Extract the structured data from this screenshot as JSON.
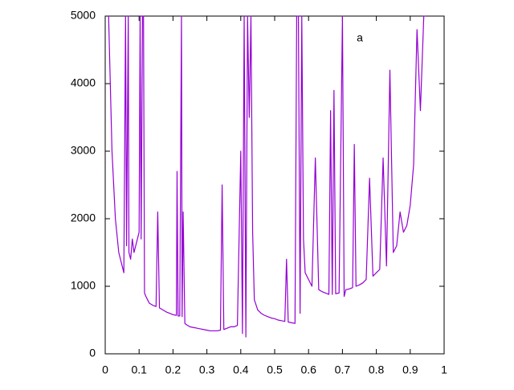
{
  "chart_data": {
    "type": "line",
    "x": [
      0.01,
      0.015,
      0.02,
      0.03,
      0.04,
      0.05,
      0.055,
      0.06,
      0.063,
      0.068,
      0.07,
      0.075,
      0.08,
      0.085,
      0.09,
      0.095,
      0.1,
      0.103,
      0.106,
      0.11,
      0.113,
      0.116,
      0.12,
      0.125,
      0.13,
      0.14,
      0.15,
      0.155,
      0.16,
      0.17,
      0.18,
      0.19,
      0.2,
      0.21,
      0.212,
      0.215,
      0.22,
      0.225,
      0.227,
      0.23,
      0.235,
      0.24,
      0.25,
      0.26,
      0.27,
      0.28,
      0.29,
      0.3,
      0.31,
      0.32,
      0.33,
      0.34,
      0.345,
      0.35,
      0.36,
      0.37,
      0.38,
      0.39,
      0.4,
      0.405,
      0.41,
      0.415,
      0.42,
      0.425,
      0.43,
      0.435,
      0.44,
      0.45,
      0.46,
      0.47,
      0.48,
      0.49,
      0.5,
      0.51,
      0.52,
      0.53,
      0.535,
      0.54,
      0.55,
      0.56,
      0.565,
      0.57,
      0.575,
      0.58,
      0.585,
      0.59,
      0.6,
      0.61,
      0.62,
      0.63,
      0.64,
      0.65,
      0.66,
      0.665,
      0.67,
      0.675,
      0.68,
      0.69,
      0.7,
      0.705,
      0.71,
      0.72,
      0.73,
      0.735,
      0.74,
      0.75,
      0.76,
      0.77,
      0.78,
      0.79,
      0.8,
      0.81,
      0.82,
      0.83,
      0.84,
      0.85,
      0.86,
      0.87,
      0.88,
      0.89,
      0.9,
      0.91,
      0.92,
      0.93,
      0.94,
      0.945
    ],
    "series": [
      {
        "name": "a",
        "color": "#9400d3",
        "values": [
          5000,
          4000,
          3000,
          2000,
          1500,
          1300,
          1200,
          5000,
          1600,
          5000,
          1500,
          1400,
          1700,
          1500,
          1600,
          1700,
          1800,
          5000,
          1700,
          5000,
          5000,
          900,
          850,
          800,
          750,
          720,
          700,
          2100,
          680,
          650,
          620,
          600,
          580,
          570,
          2700,
          560,
          560,
          5000,
          550,
          2100,
          450,
          430,
          400,
          390,
          380,
          370,
          360,
          350,
          340,
          340,
          340,
          350,
          2500,
          360,
          380,
          400,
          400,
          420,
          3000,
          300,
          5000,
          250,
          5000,
          3500,
          5000,
          1800,
          800,
          650,
          600,
          570,
          550,
          530,
          520,
          500,
          490,
          480,
          1400,
          470,
          460,
          450,
          5000,
          5000,
          600,
          5000,
          1700,
          1200,
          1100,
          1000,
          2900,
          950,
          920,
          900,
          880,
          3600,
          880,
          3900,
          890,
          900,
          5000,
          850,
          950,
          960,
          980,
          3100,
          1000,
          1020,
          1050,
          1100,
          2600,
          1150,
          1200,
          1250,
          2900,
          1300,
          4200,
          1500,
          1600,
          2100,
          1800,
          1900,
          2200,
          2800,
          4800,
          3600,
          5000,
          5000
        ]
      }
    ],
    "xlim": [
      0,
      1
    ],
    "xticks": [
      0,
      0.1,
      0.2,
      0.3,
      0.4,
      0.5,
      0.6,
      0.7,
      0.8,
      0.9,
      1
    ],
    "ylim": [
      0,
      5000
    ],
    "yticks": [
      0,
      1000,
      2000,
      3000,
      4000,
      5000
    ]
  }
}
